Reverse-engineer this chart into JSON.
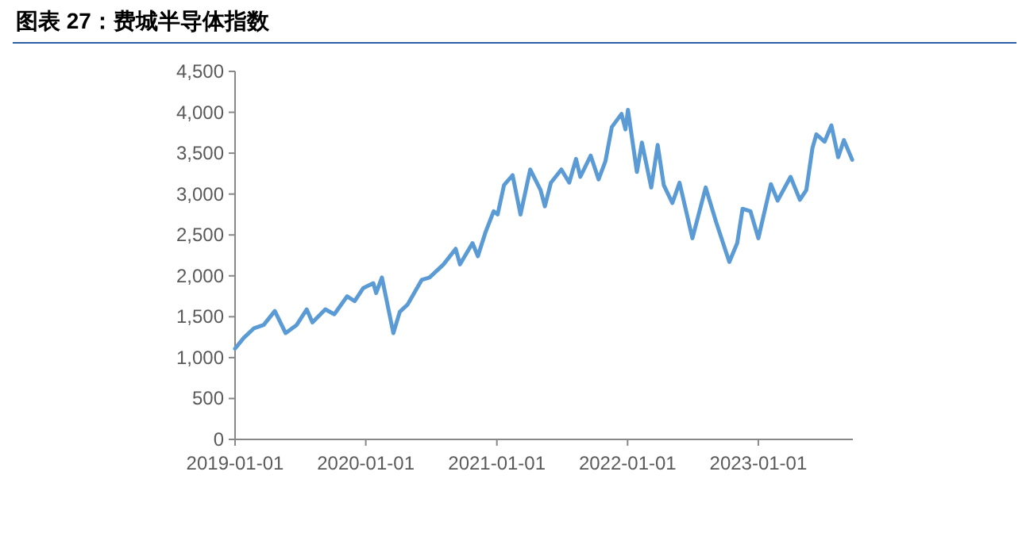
{
  "chart_data": {
    "type": "line",
    "title": "图表 27：费城半导体指数",
    "x": [
      "2019-01-01",
      "2019-01-25",
      "2019-02-23",
      "2019-03-22",
      "2019-04-22",
      "2019-05-22",
      "2019-06-22",
      "2019-07-20",
      "2019-08-05",
      "2019-09-10",
      "2019-10-05",
      "2019-11-10",
      "2019-12-01",
      "2019-12-25",
      "2020-01-22",
      "2020-01-30",
      "2020-02-15",
      "2020-03-18",
      "2020-04-05",
      "2020-04-27",
      "2020-06-05",
      "2020-06-27",
      "2020-08-05",
      "2020-09-08",
      "2020-09-20",
      "2020-10-25",
      "2020-11-09",
      "2020-11-30",
      "2020-12-23",
      "2021-01-03",
      "2021-01-21",
      "2021-02-14",
      "2021-03-08",
      "2021-04-04",
      "2021-05-03",
      "2021-05-15",
      "2021-06-01",
      "2021-06-30",
      "2021-07-22",
      "2021-08-10",
      "2021-08-22",
      "2021-09-20",
      "2021-10-12",
      "2021-10-31",
      "2021-11-18",
      "2021-12-15",
      "2021-12-26",
      "2022-01-02",
      "2022-01-27",
      "2022-02-10",
      "2022-03-08",
      "2022-03-26",
      "2022-04-12",
      "2022-05-06",
      "2022-05-26",
      "2022-07-01",
      "2022-08-07",
      "2022-09-05",
      "2022-10-12",
      "2022-11-03",
      "2022-11-18",
      "2022-12-10",
      "2023-01-01",
      "2023-02-05",
      "2023-02-24",
      "2023-04-01",
      "2023-04-27",
      "2023-05-15",
      "2023-06-01",
      "2023-06-12",
      "2023-07-05",
      "2023-07-24",
      "2023-08-12",
      "2023-08-28",
      "2023-09-20"
    ],
    "series": [
      {
        "color": "#5b9bd5",
        "values": [
          1110,
          1240,
          1360,
          1400,
          1570,
          1300,
          1400,
          1590,
          1430,
          1590,
          1530,
          1750,
          1690,
          1850,
          1910,
          1790,
          1980,
          1300,
          1560,
          1650,
          1950,
          1980,
          2140,
          2330,
          2140,
          2400,
          2240,
          2530,
          2790,
          2750,
          3110,
          3230,
          2750,
          3300,
          3050,
          2850,
          3140,
          3300,
          3140,
          3430,
          3210,
          3470,
          3180,
          3400,
          3820,
          3980,
          3790,
          4030,
          3270,
          3630,
          3080,
          3600,
          3110,
          2890,
          3140,
          2460,
          3080,
          2660,
          2170,
          2400,
          2820,
          2790,
          2460,
          3120,
          2920,
          3210,
          2930,
          3050,
          3560,
          3730,
          3640,
          3840,
          3450,
          3660,
          3420
        ]
      }
    ],
    "xlim": [
      "2019-01-01",
      "2023-09-22"
    ],
    "xticks": [
      "2019-01-01",
      "2020-01-01",
      "2021-01-01",
      "2022-01-01",
      "2023-01-01"
    ],
    "ylim": [
      0,
      4500
    ],
    "yticks": [
      {
        "value": 0,
        "label": "0"
      },
      {
        "value": 500,
        "label": "500"
      },
      {
        "value": 1000,
        "label": "1,000"
      },
      {
        "value": 1500,
        "label": "1,500"
      },
      {
        "value": 2000,
        "label": "2,000"
      },
      {
        "value": 2500,
        "label": "2,500"
      },
      {
        "value": 3000,
        "label": "3,000"
      },
      {
        "value": 3500,
        "label": "3,500"
      },
      {
        "value": 4000,
        "label": "4,000"
      },
      {
        "value": 4500,
        "label": "4,500"
      }
    ],
    "grid": false,
    "marker": "none",
    "line_style": "solid"
  }
}
